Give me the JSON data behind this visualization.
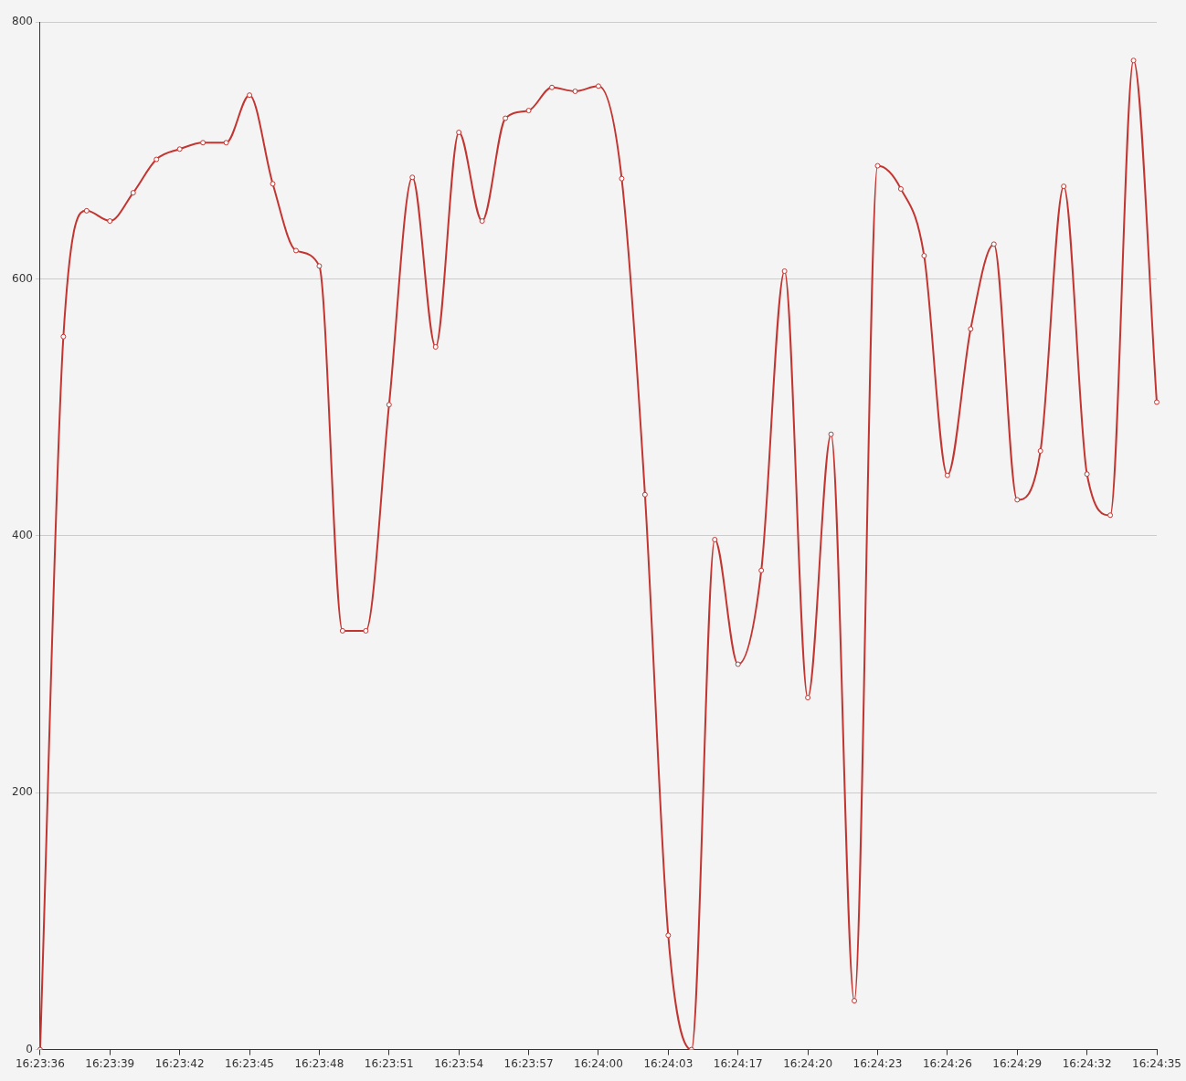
{
  "chart_data": {
    "type": "line",
    "categories": [
      "16:23:36",
      null,
      null,
      "16:23:39",
      null,
      null,
      "16:23:42",
      null,
      null,
      "16:23:45",
      null,
      null,
      "16:23:48",
      null,
      null,
      "16:23:51",
      null,
      null,
      "16:23:54",
      null,
      null,
      "16:23:57",
      null,
      null,
      "16:24:00",
      null,
      null,
      "16:24:03",
      null,
      null,
      "16:24:17",
      null,
      null,
      "16:24:20",
      null,
      null,
      "16:24:23",
      null,
      null,
      "16:24:26",
      null,
      null,
      "16:24:29",
      null,
      null,
      "16:24:32",
      null,
      null,
      "16:24:35"
    ],
    "series": [
      {
        "color": "#c23531",
        "values": [
          0,
          555,
          653,
          645,
          667,
          693,
          701,
          706,
          706,
          743,
          674,
          622,
          610,
          326,
          326,
          502,
          679,
          547,
          714,
          645,
          725,
          731,
          749,
          746,
          750,
          678,
          432,
          89,
          0,
          397,
          300,
          373,
          606,
          274,
          479,
          38,
          688,
          670,
          618,
          447,
          561,
          627,
          428,
          466,
          672,
          448,
          416,
          770,
          504
        ]
      }
    ],
    "ylim": [
      0,
      800
    ],
    "yticks": [
      0,
      200,
      400,
      600,
      800
    ],
    "grid": "y",
    "marker": "circle",
    "legend": false
  }
}
